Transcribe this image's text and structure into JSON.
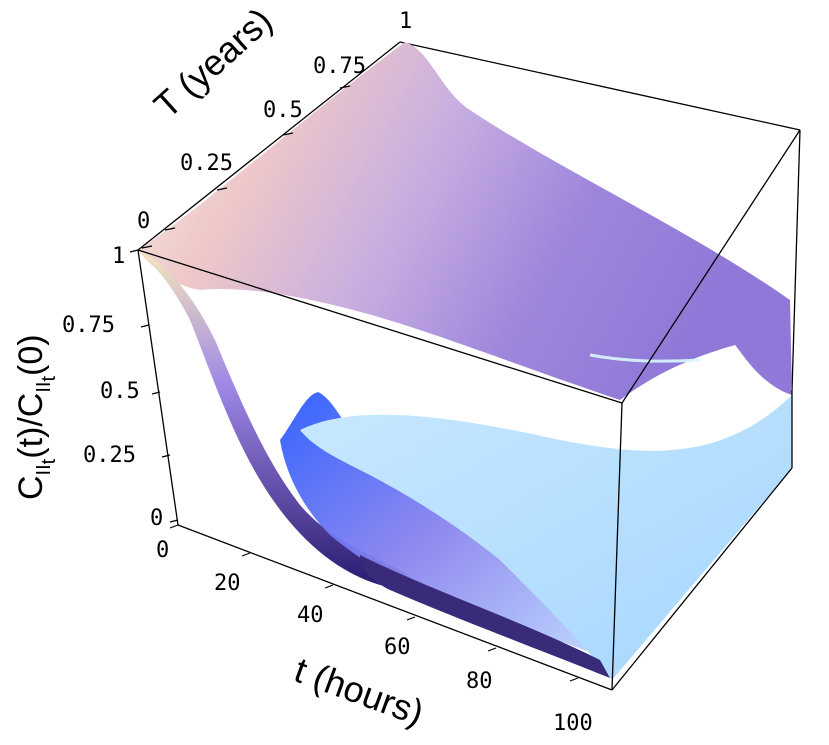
{
  "chart_data": {
    "type": "surface3d",
    "x_axis": {
      "label": "t (hours)",
      "ticks": [
        "0",
        "20",
        "40",
        "60",
        "80",
        "100"
      ],
      "range": [
        0,
        100
      ]
    },
    "y_axis": {
      "label": "T (years)",
      "ticks": [
        "0",
        "0.25",
        "0.5",
        "0.75",
        "1"
      ],
      "range": [
        0,
        1
      ]
    },
    "z_axis": {
      "label_parts": {
        "c1": "C",
        "sub1": "II",
        "sub1b": "t",
        "mid": "(t)/C",
        "sub2": "II",
        "sub2b": "t",
        "end": "(0)"
      },
      "ticks": [
        "0",
        "0.25",
        "0.5",
        "0.75",
        "1"
      ],
      "range": [
        0,
        1
      ]
    },
    "surface_samples": {
      "t": [
        0,
        20,
        40,
        60,
        80,
        100
      ],
      "T": [
        0,
        0.25,
        0.5,
        0.75,
        1
      ],
      "z": [
        [
          1.0,
          0.55,
          0.12,
          0.03,
          0.01,
          0.0
        ],
        [
          1.0,
          0.85,
          0.55,
          0.3,
          0.15,
          0.08
        ],
        [
          1.0,
          0.93,
          0.8,
          0.62,
          0.45,
          0.32
        ],
        [
          1.0,
          0.97,
          0.9,
          0.8,
          0.7,
          0.6
        ],
        [
          1.0,
          0.99,
          0.96,
          0.92,
          0.88,
          0.84
        ]
      ]
    },
    "colors": {
      "low": "#a8d8ff",
      "mid": "#e8c4c8",
      "high": "#9078d8",
      "shadow": "#3a2a8a",
      "edge": "#5050e0"
    }
  }
}
